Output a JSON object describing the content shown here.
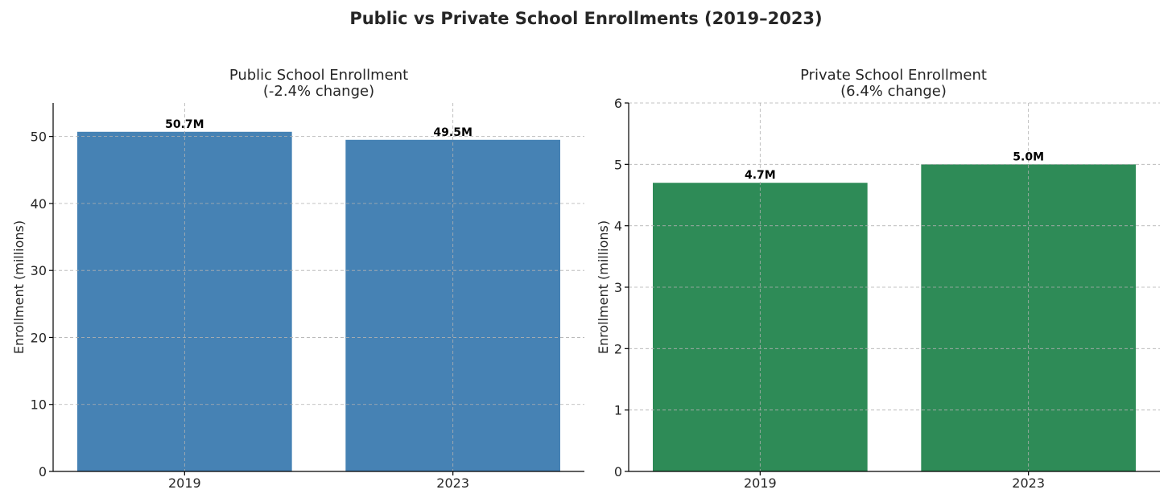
{
  "figure": {
    "title": "Public vs Private School Enrollments (2019–2023)"
  },
  "chart_data": [
    {
      "type": "bar",
      "title": "Public School Enrollment",
      "subtitle": "(-2.4% change)",
      "categories": [
        "2019",
        "2023"
      ],
      "values": [
        50.7,
        49.5
      ],
      "value_labels": [
        "50.7M",
        "49.5M"
      ],
      "xlabel": "",
      "ylabel": "Enrollment (millions)",
      "ylim": [
        0,
        55
      ],
      "yticks": [
        0,
        10,
        20,
        30,
        40,
        50
      ],
      "color": "#4682b4",
      "grid": true
    },
    {
      "type": "bar",
      "title": "Private School Enrollment",
      "subtitle": "(6.4% change)",
      "categories": [
        "2019",
        "2023"
      ],
      "values": [
        4.7,
        5.0
      ],
      "value_labels": [
        "4.7M",
        "5.0M"
      ],
      "xlabel": "",
      "ylabel": "Enrollment (millions)",
      "ylim": [
        0,
        6
      ],
      "yticks": [
        0,
        1,
        2,
        3,
        4,
        5,
        6
      ],
      "color": "#2e8b57",
      "grid": true
    }
  ]
}
